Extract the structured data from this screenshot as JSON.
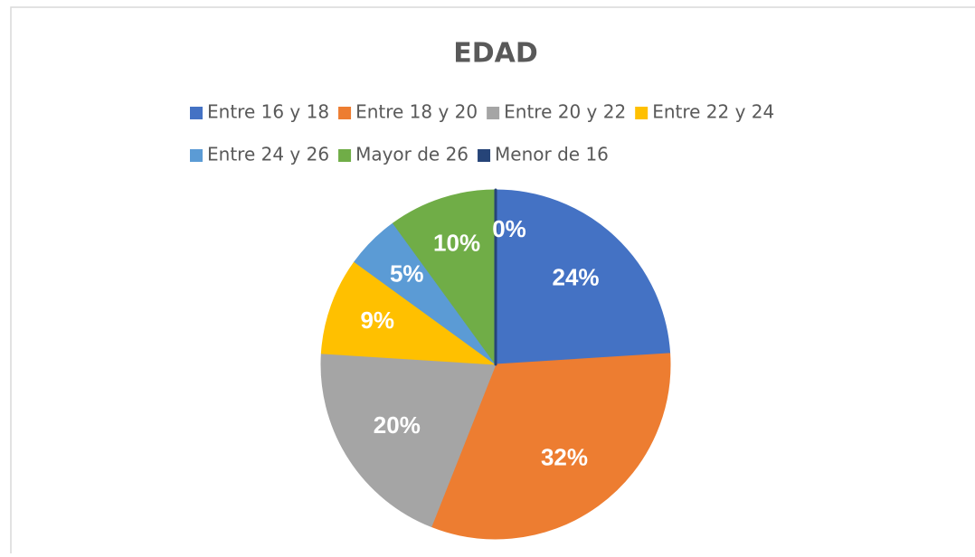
{
  "chart_data": {
    "type": "pie",
    "title": "EDAD",
    "categories": [
      "Entre 16 y 18",
      "Entre 18 y 20",
      "Entre 20 y 22",
      "Entre 22 y 24",
      "Entre 24 y 26",
      "Mayor de 26",
      "Menor de 16"
    ],
    "values": [
      24,
      32,
      20,
      9,
      5,
      10,
      0
    ],
    "value_labels": [
      "24%",
      "32%",
      "20%",
      "9%",
      "5%",
      "10%",
      "0%"
    ],
    "colors": [
      "#4472c4",
      "#ed7d31",
      "#a5a5a5",
      "#ffc000",
      "#5b9bd5",
      "#70ad47",
      "#264478"
    ],
    "legend": "top"
  }
}
